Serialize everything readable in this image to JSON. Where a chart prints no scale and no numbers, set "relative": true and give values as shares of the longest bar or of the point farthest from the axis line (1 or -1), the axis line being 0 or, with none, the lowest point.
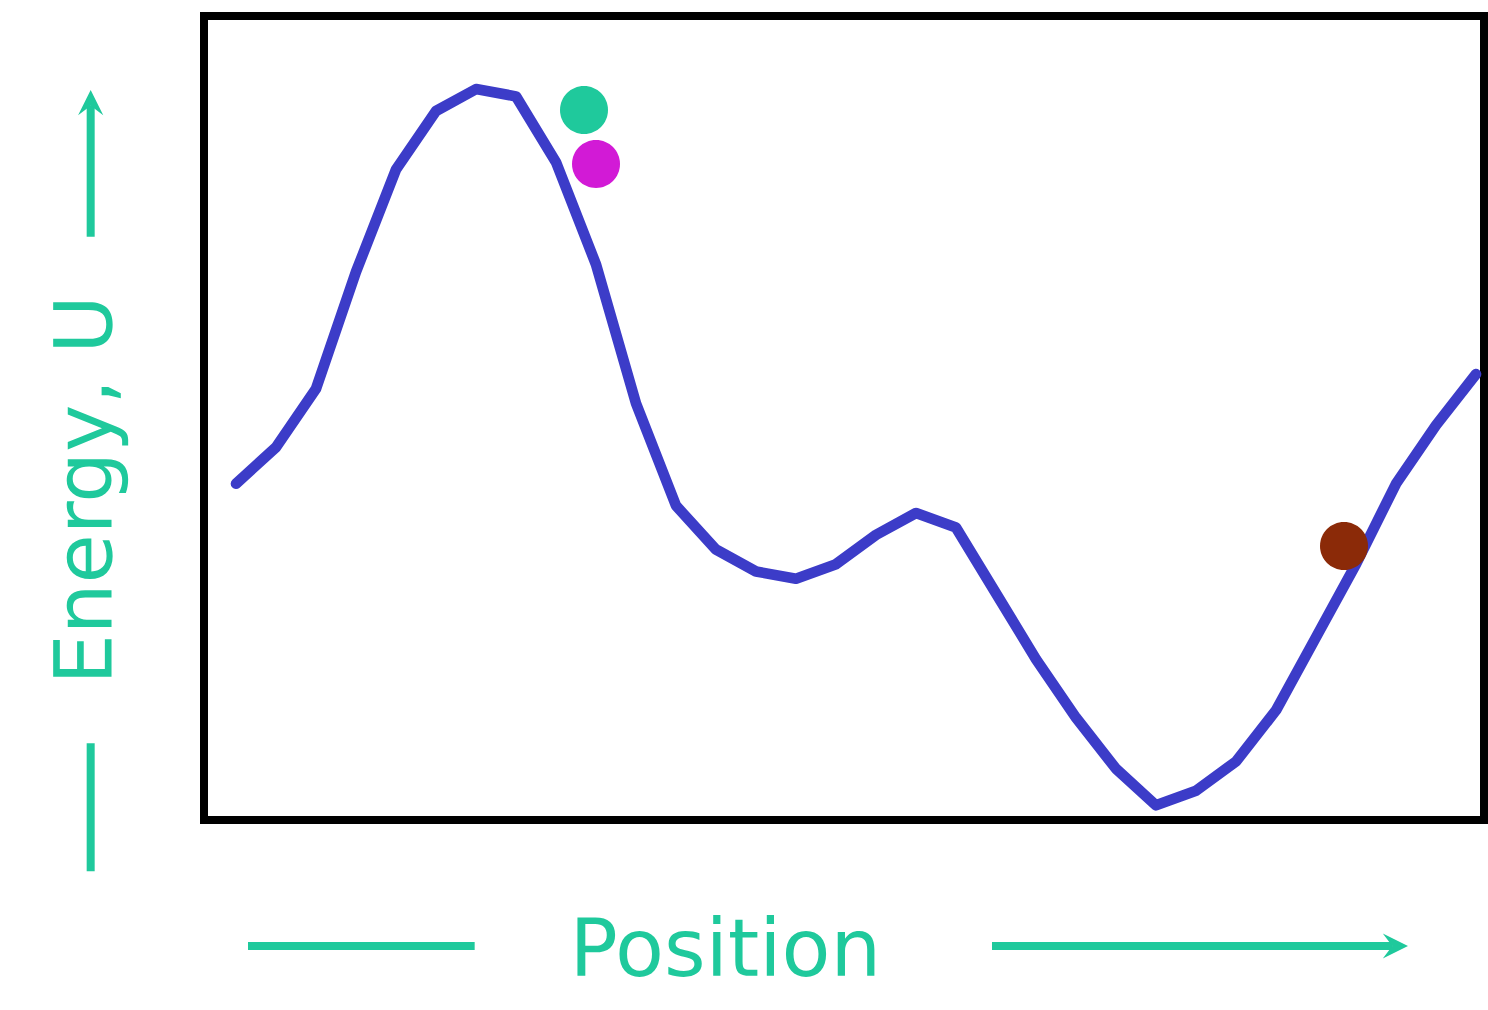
{
  "chart_data": {
    "type": "line",
    "relative": true,
    "xlabel": "Position",
    "ylabel": "Energy, U",
    "categories": [
      null,
      null,
      null,
      null,
      null,
      null,
      null,
      null,
      null,
      null,
      null,
      null,
      null,
      null,
      null,
      null,
      null,
      null,
      null,
      null,
      null,
      null,
      null,
      null,
      null,
      null,
      null,
      null,
      null,
      null,
      null,
      null
    ],
    "series": [
      {
        "color": "#3c3cc8",
        "values": [
          0.46,
          0.51,
          0.59,
          0.75,
          0.89,
          0.97,
          1.0,
          0.99,
          0.9,
          0.76,
          0.57,
          0.43,
          0.37,
          0.34,
          0.33,
          0.35,
          0.39,
          0.42,
          0.4,
          0.31,
          0.22,
          0.14,
          0.07,
          0.02,
          0.04,
          0.08,
          0.15,
          0.25,
          0.35,
          0.46,
          0.54,
          0.61
        ]
      }
    ]
  }
}
